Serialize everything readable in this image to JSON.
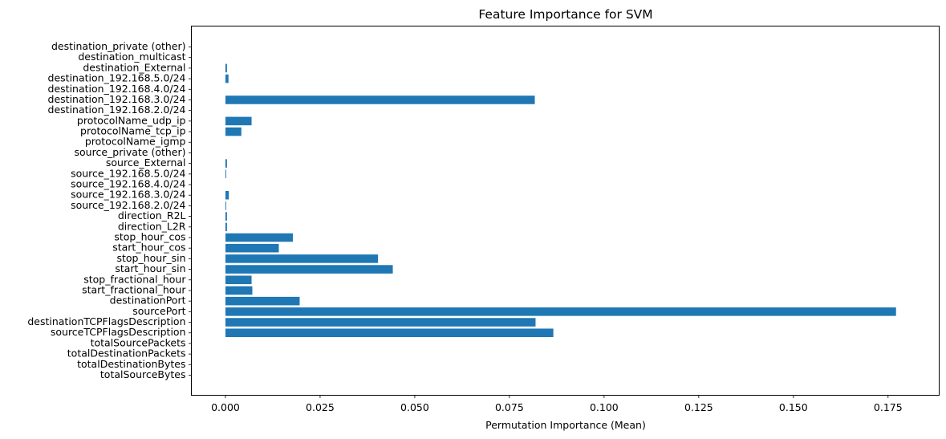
{
  "chart_data": {
    "type": "bar",
    "orientation": "horizontal",
    "title": "Feature Importance for SVM",
    "xlabel": "Permutation Importance (Mean)",
    "ylabel": "",
    "xlim": [
      -0.009,
      0.1885
    ],
    "xticks": [
      0.0,
      0.025,
      0.05,
      0.075,
      0.1,
      0.125,
      0.15,
      0.175
    ],
    "xtick_labels": [
      "0.000",
      "0.025",
      "0.050",
      "0.075",
      "0.100",
      "0.125",
      "0.150",
      "0.175"
    ],
    "grid": false,
    "bar_color": "#1f77b4",
    "categories": [
      "totalSourceBytes",
      "totalDestinationBytes",
      "totalDestinationPackets",
      "totalSourcePackets",
      "sourceTCPFlagsDescription",
      "destinationTCPFlagsDescription",
      "sourcePort",
      "destinationPort",
      "start_fractional_hour",
      "stop_fractional_hour",
      "start_hour_sin",
      "stop_hour_sin",
      "start_hour_cos",
      "stop_hour_cos",
      "direction_L2R",
      "direction_R2L",
      "source_192.168.2.0/24",
      "source_192.168.3.0/24",
      "source_192.168.4.0/24",
      "source_192.168.5.0/24",
      "source_External",
      "source_private (other)",
      "protocolName_igmp",
      "protocolName_tcp_ip",
      "protocolName_udp_ip",
      "destination_192.168.2.0/24",
      "destination_192.168.3.0/24",
      "destination_192.168.4.0/24",
      "destination_192.168.5.0/24",
      "destination_External",
      "destination_multicast",
      "destination_private (other)"
    ],
    "values": [
      0.0,
      0.0,
      0.0,
      0.0,
      0.0866,
      0.0819,
      0.1771,
      0.0196,
      0.0071,
      0.0069,
      0.0442,
      0.0403,
      0.0141,
      0.0178,
      0.0004,
      0.0004,
      0.0002,
      0.0009,
      0.0,
      0.0002,
      0.0004,
      0.0,
      0.0,
      0.0042,
      0.0069,
      0.0,
      0.0817,
      0.0,
      0.0008,
      0.0004,
      0.0,
      0.0
    ]
  }
}
